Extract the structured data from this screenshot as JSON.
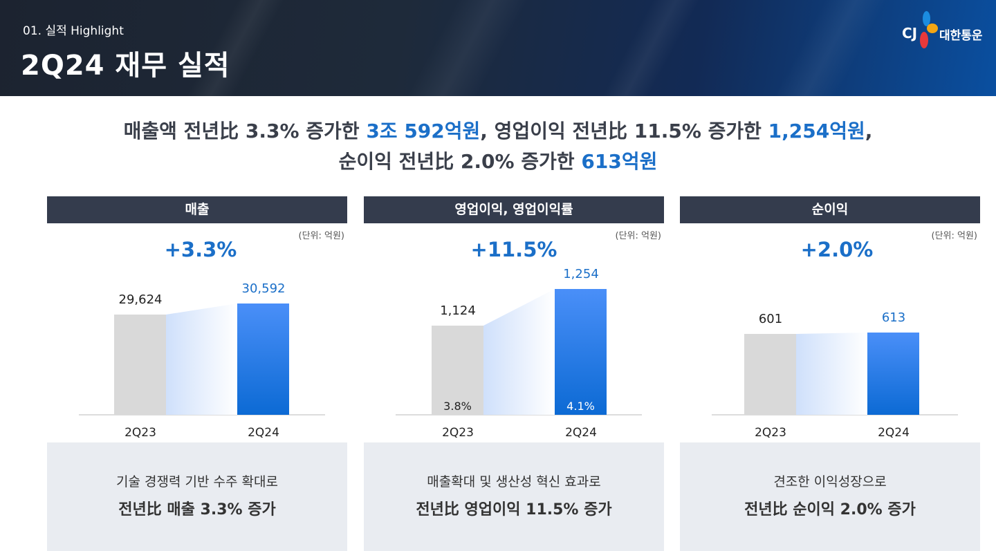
{
  "header": {
    "section": "01. 실적 Highlight",
    "title": "2Q24 재무 실적",
    "logo_text": "대한통운",
    "logo_mark": "CJ"
  },
  "summary": {
    "line1": [
      {
        "t": "매출액 전년比 3.3% 증가한 "
      },
      {
        "t": "3조 592억원",
        "hl": true
      },
      {
        "t": ", 영업이익 전년比 11.5% 증가한 "
      },
      {
        "t": "1,254억원",
        "hl": true
      },
      {
        "t": ","
      }
    ],
    "line2": [
      {
        "t": "순이익 전년比 2.0% 증가한 "
      },
      {
        "t": "613억원",
        "hl": true
      }
    ]
  },
  "colors": {
    "accent": "#1b6fc8",
    "header_bar": "#343c4d",
    "prev_bar": "#d9d9d9",
    "cur_bar": "#2a7fe8"
  },
  "panels": [
    {
      "title": "매출",
      "unit": "(단위: 억원)",
      "growth": "+3.3%",
      "categories": [
        "2Q23",
        "2Q24"
      ],
      "values": [
        29624,
        30592
      ],
      "labels": [
        "29,624",
        "30,592"
      ],
      "desc1": "기술 경쟁력 기반 수주 확대로",
      "desc2": "전년比 매출 3.3% 증가"
    },
    {
      "title": "영업이익, 영업이익률",
      "unit": "(단위: 억원)",
      "growth": "+11.5%",
      "categories": [
        "2Q23",
        "2Q24"
      ],
      "values": [
        1124,
        1254
      ],
      "labels": [
        "1,124",
        "1,254"
      ],
      "margins": [
        "3.8%",
        "4.1%"
      ],
      "desc1": "매출확대 및 생산성 혁신 효과로",
      "desc2": "전년比 영업이익 11.5% 증가"
    },
    {
      "title": "순이익",
      "unit": "(단위: 억원)",
      "growth": "+2.0%",
      "categories": [
        "2Q23",
        "2Q24"
      ],
      "values": [
        601,
        613
      ],
      "labels": [
        "601",
        "613"
      ],
      "desc1": "견조한 이익성장으로",
      "desc2": "전년比 순이익 2.0% 증가"
    }
  ]
}
